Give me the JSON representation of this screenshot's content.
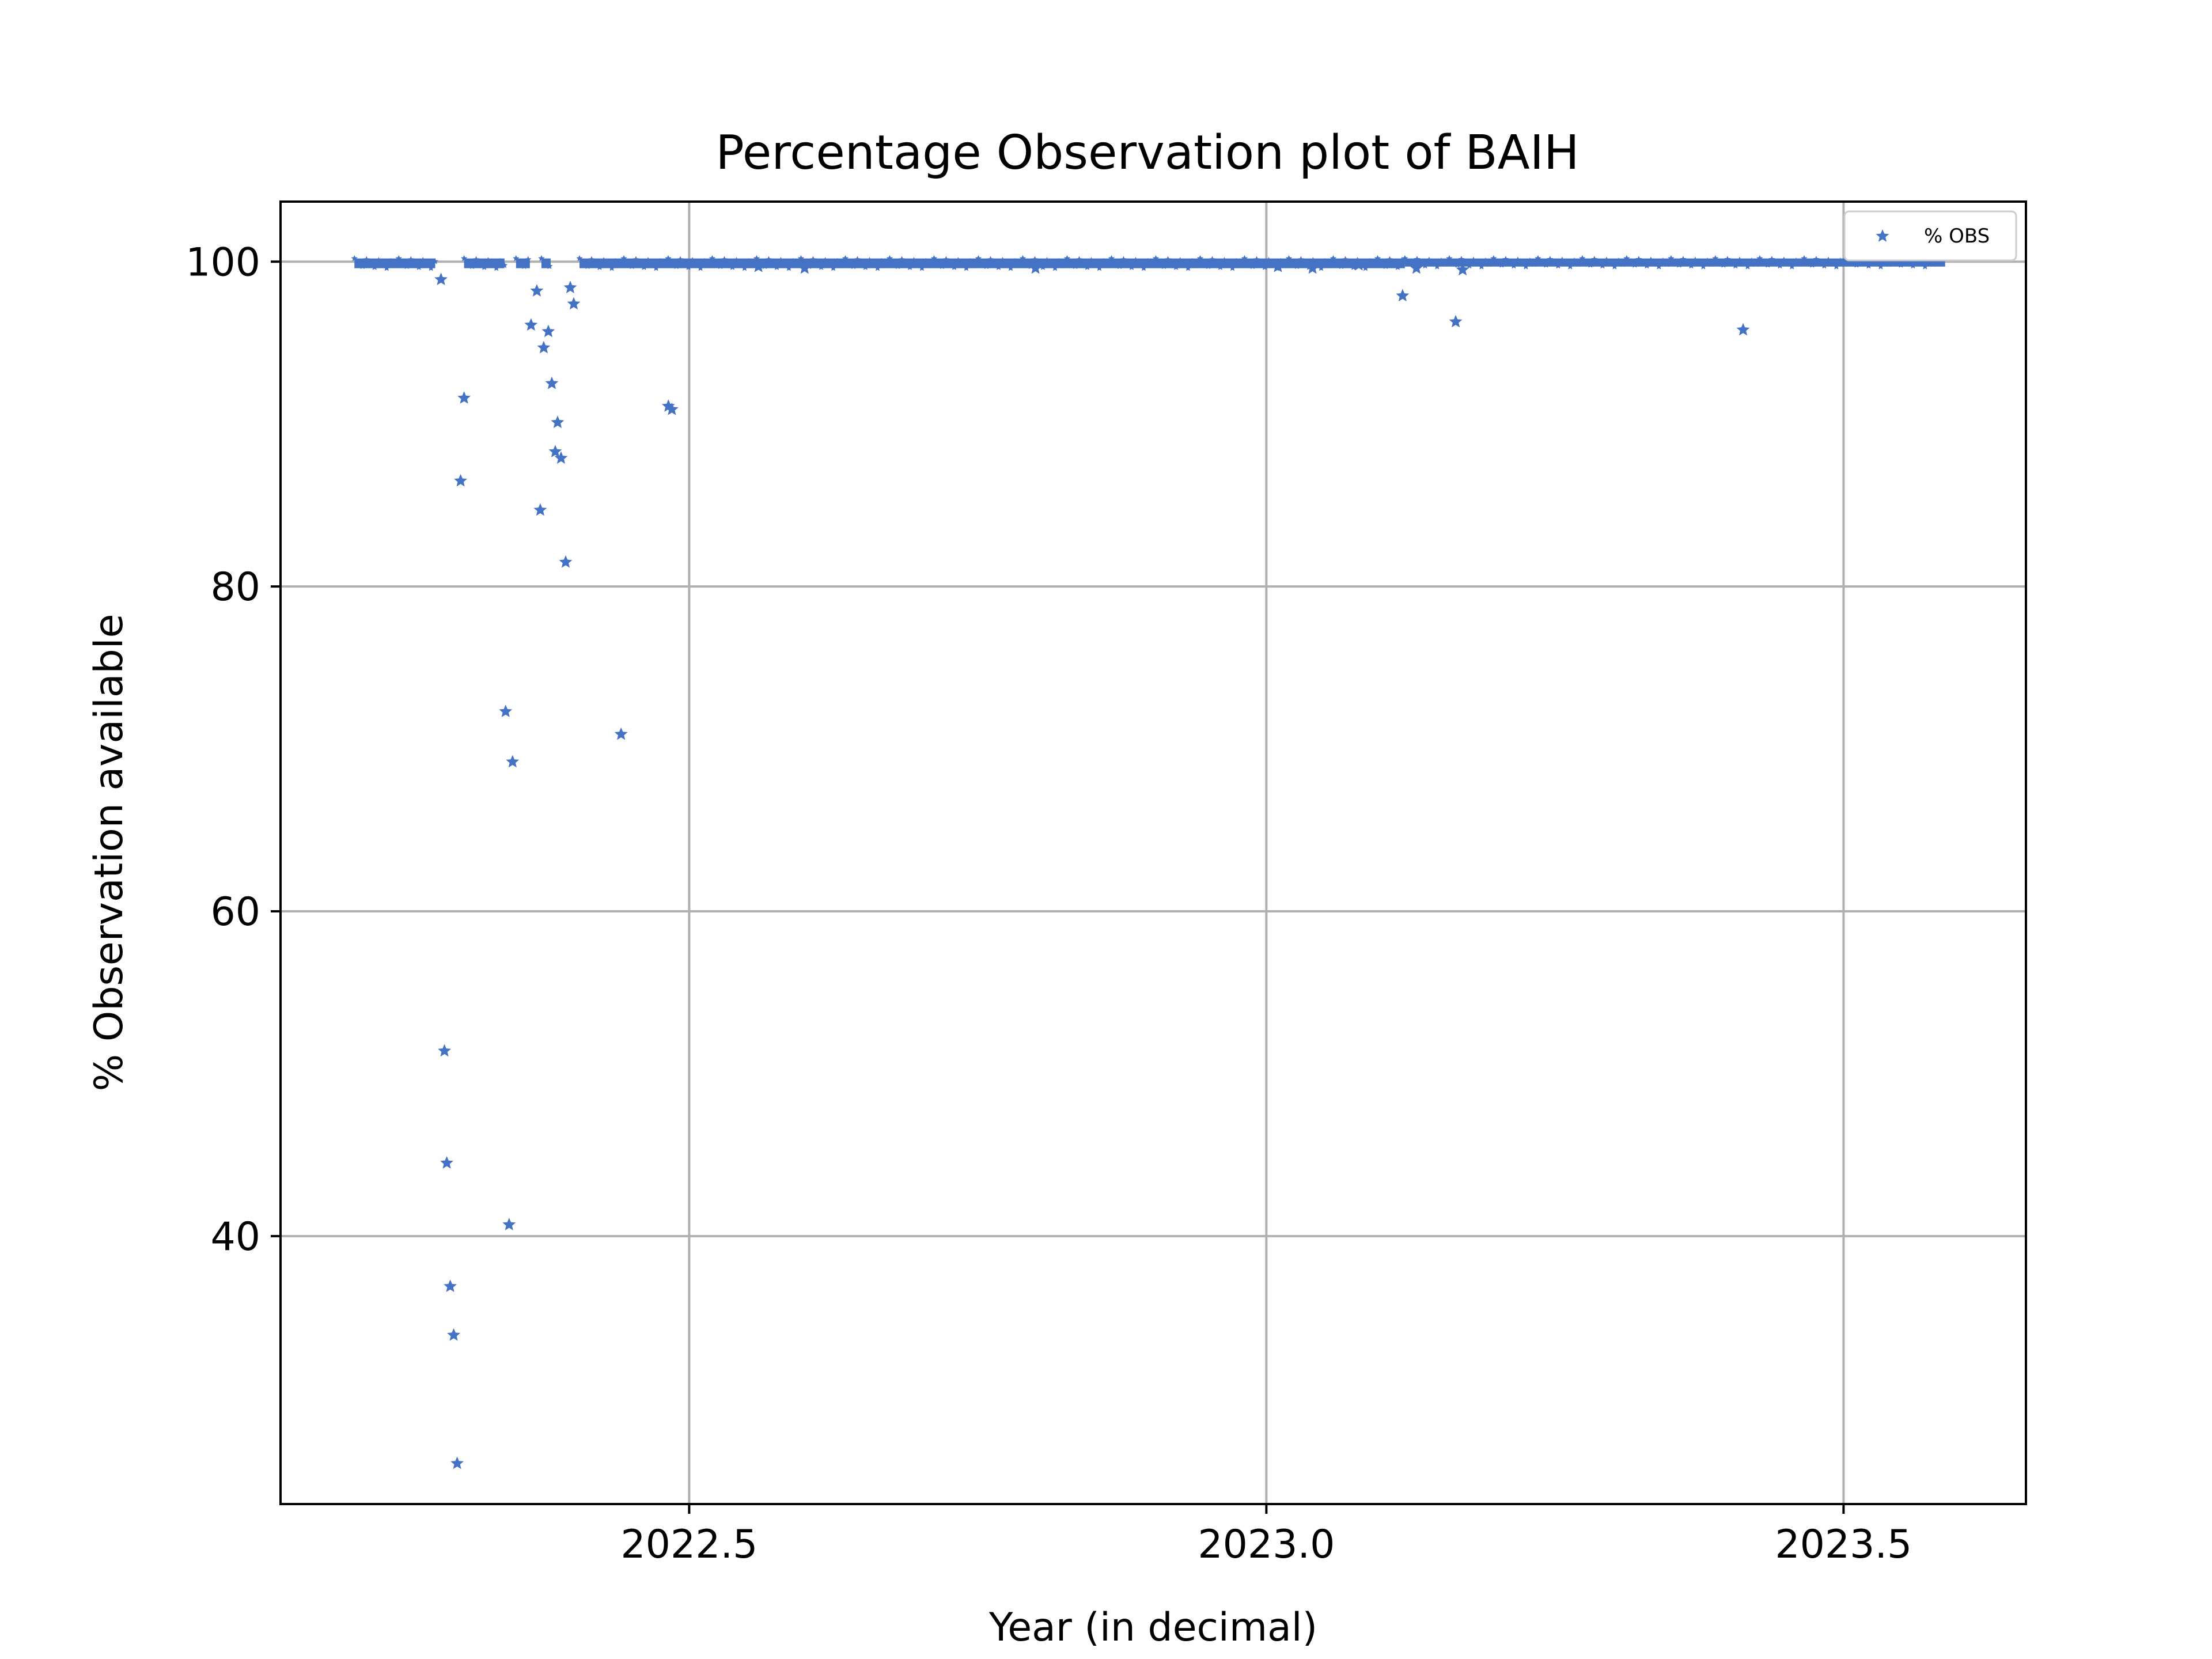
{
  "chart_data": {
    "type": "scatter",
    "title": "Percentage Observation plot of BAIH",
    "xlabel": "Year (in decimal)",
    "ylabel": "% Observation available",
    "xlim": [
      2022.146,
      2023.658
    ],
    "ylim": [
      23.5,
      103.7
    ],
    "xticks": [
      2022.5,
      2023.0,
      2023.5
    ],
    "xtick_labels": [
      "2022.5",
      "2023.0",
      "2023.5"
    ],
    "yticks": [
      40,
      60,
      80,
      100
    ],
    "ytick_labels": [
      "40",
      "60",
      "80",
      "100"
    ],
    "grid": true,
    "legend_position": "top-right",
    "marker": "star",
    "color": "#4472c4",
    "series": [
      {
        "name": "% OBS",
        "points": [
          [
            2022.285,
            98.9
          ],
          [
            2022.288,
            51.4
          ],
          [
            2022.29,
            44.5
          ],
          [
            2022.293,
            36.9
          ],
          [
            2022.296,
            33.9
          ],
          [
            2022.299,
            26.0
          ],
          [
            2022.302,
            86.5
          ],
          [
            2022.305,
            91.6
          ],
          [
            2022.341,
            72.3
          ],
          [
            2022.344,
            40.7
          ],
          [
            2022.347,
            69.2
          ],
          [
            2022.363,
            96.1
          ],
          [
            2022.368,
            98.2
          ],
          [
            2022.371,
            84.7
          ],
          [
            2022.374,
            94.7
          ],
          [
            2022.378,
            95.7
          ],
          [
            2022.381,
            92.5
          ],
          [
            2022.384,
            88.3
          ],
          [
            2022.386,
            90.1
          ],
          [
            2022.389,
            87.9
          ],
          [
            2022.393,
            81.5
          ],
          [
            2022.397,
            98.4
          ],
          [
            2022.4,
            97.4
          ],
          [
            2022.441,
            70.9
          ],
          [
            2022.482,
            91.1
          ],
          [
            2022.485,
            90.9
          ],
          [
            2023.118,
            97.9
          ],
          [
            2023.164,
            96.3
          ],
          [
            2023.413,
            95.8
          ],
          [
            2023.01,
            99.7
          ],
          [
            2023.04,
            99.6
          ],
          [
            2023.08,
            99.8
          ],
          [
            2023.13,
            99.6
          ],
          [
            2023.17,
            99.5
          ],
          [
            2022.56,
            99.7
          ],
          [
            2022.6,
            99.6
          ],
          [
            2022.8,
            99.6
          ]
        ],
        "dense_bands": [
          {
            "x_range": [
              2022.21,
              2022.28
            ],
            "y_range": [
              99.6,
              100.2
            ]
          },
          {
            "x_range": [
              2022.305,
              2022.34
            ],
            "y_range": [
              99.6,
              100.2
            ]
          },
          {
            "x_range": [
              2022.35,
              2022.362
            ],
            "y_range": [
              99.6,
              100.2
            ]
          },
          {
            "x_range": [
              2022.372,
              2022.38
            ],
            "y_range": [
              99.6,
              100.2
            ]
          },
          {
            "x_range": [
              2022.405,
              2022.52
            ],
            "y_range": [
              99.6,
              100.2
            ]
          },
          {
            "x_range": [
              2022.52,
              2023.12
            ],
            "y_range": [
              99.6,
              100.2
            ]
          },
          {
            "x_range": [
              2023.12,
              2023.588
            ],
            "y_range": [
              99.7,
              100.2
            ]
          }
        ]
      }
    ]
  }
}
